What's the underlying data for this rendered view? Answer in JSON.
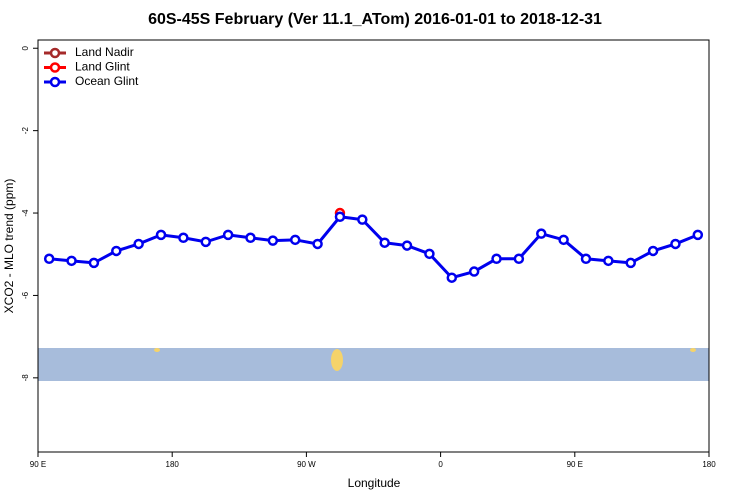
{
  "chart_data": {
    "type": "line",
    "title": "60S-45S February (Ver 11.1_ATom)   2016-01-01 to 2018-12-31",
    "x_label": "Longitude",
    "y_label": "XCO2 - MLO trend (ppm)",
    "xlim": [
      90,
      540
    ],
    "xticks": [
      {
        "value": 90,
        "label": "90 E"
      },
      180,
      {
        "value": 270,
        "label": "90 W"
      },
      {
        "value": 360,
        "label": "0"
      },
      {
        "value": 450,
        "label": "90 E"
      },
      {
        "value": 540,
        "label": "180"
      }
    ],
    "ylim": [
      -9.8,
      0.2
    ],
    "yticks": [
      0,
      -2,
      -4,
      -6,
      -8
    ],
    "legend": "top-left",
    "series": [
      {
        "name": "Land Nadir",
        "color": "#a52a2a",
        "x": [],
        "values": []
      },
      {
        "name": "Land Glint",
        "color": "#ff0000",
        "x": [
          292.5
        ],
        "values": [
          -4.0
        ]
      },
      {
        "name": "Ocean Glint",
        "color": "#0000ee",
        "x": [
          97.5,
          112.5,
          127.5,
          142.5,
          157.5,
          172.5,
          187.5,
          202.5,
          217.5,
          232.5,
          247.5,
          262.5,
          277.5,
          292.5,
          307.5,
          322.5,
          337.5,
          352.5,
          367.5,
          382.5,
          397.5,
          412.5,
          427.5,
          442.5,
          457.5,
          472.5,
          487.5,
          502.5,
          517.5,
          532.5
        ],
        "values": [
          -5.11,
          -5.16,
          -5.21,
          -4.92,
          -4.75,
          -4.53,
          -4.6,
          -4.7,
          -4.53,
          -4.6,
          -4.67,
          -4.65,
          -4.75,
          -4.09,
          -4.16,
          -4.72,
          -4.79,
          -4.99,
          -5.57,
          -5.42,
          -5.11,
          -5.11,
          -4.5,
          -4.65,
          -5.11,
          -5.16,
          -5.21,
          -4.92,
          -4.75,
          -4.53
        ]
      }
    ]
  }
}
